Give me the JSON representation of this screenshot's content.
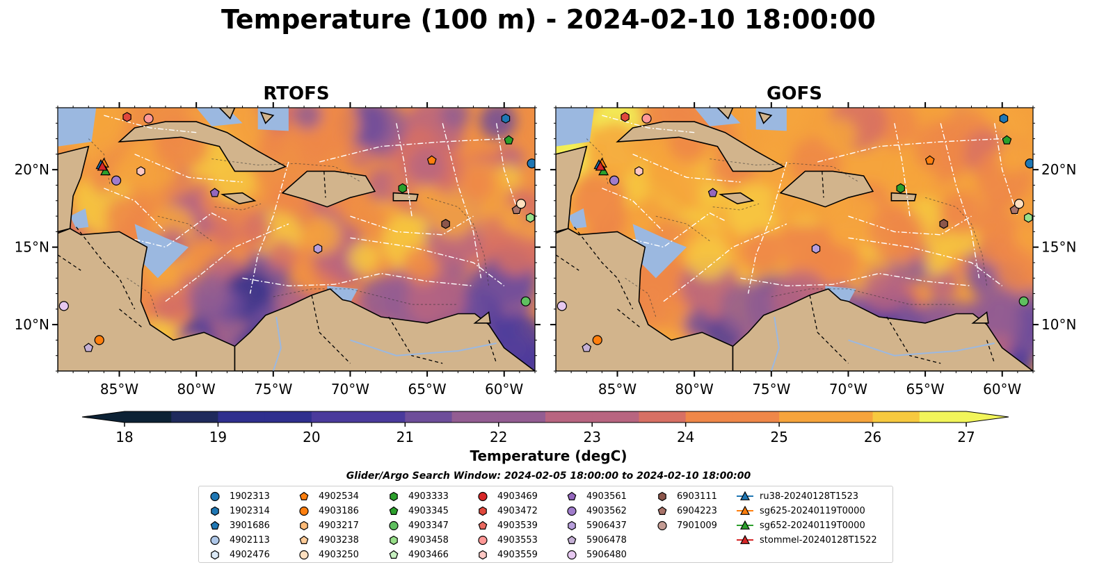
{
  "title": "Temperature (100 m) - 2024-02-10 18:00:00",
  "panels": [
    {
      "title": "RTOFS",
      "model": "RTOFS"
    },
    {
      "title": "GOFS",
      "model": "GOFS"
    }
  ],
  "colors": {
    "land": "#d2b48c",
    "shallow_water": "#9bb8e0",
    "coast": "#000000"
  },
  "colorbar": {
    "label": "Temperature (degC)",
    "ticks": [
      "18",
      "19",
      "20",
      "21",
      "22",
      "23",
      "24",
      "25",
      "26",
      "27"
    ],
    "min": 18,
    "max": 27,
    "extend": "both",
    "stops": [
      "#0d2235",
      "#1f2a5c",
      "#2f2f8e",
      "#4a3a9c",
      "#6e4e9a",
      "#935d92",
      "#b86580",
      "#d77064",
      "#ef8748",
      "#f6a43c",
      "#f7c93f",
      "#f2f55a"
    ]
  },
  "search_window": "Glider/Argo Search Window: 2024-02-05 18:00:00 to 2024-02-10 18:00:00",
  "chart_data": [
    {
      "type": "heatmap",
      "title": "RTOFS",
      "variable": "Temperature (degC)",
      "depth": "100 m",
      "x_ticks": [
        "85°W",
        "80°W",
        "75°W",
        "70°W",
        "65°W",
        "60°W"
      ],
      "y_ticks": [
        "10°N",
        "15°N",
        "20°N"
      ],
      "xlim": [
        -89,
        -58
      ],
      "ylim": [
        7,
        24
      ],
      "colorbar_range": [
        18,
        27
      ],
      "markers": [
        {
          "id": "1902313",
          "lon": -58.2,
          "lat": 20.4
        },
        {
          "id": "1902314",
          "lon": -59.9,
          "lat": 23.3
        },
        {
          "id": "4903345",
          "lon": -59.7,
          "lat": 21.9
        },
        {
          "id": "4902534",
          "lon": -64.7,
          "lat": 20.6
        },
        {
          "id": "4903333",
          "lon": -66.6,
          "lat": 18.8
        },
        {
          "id": "6904223",
          "lon": -59.2,
          "lat": 17.4
        },
        {
          "id": "4903250",
          "lon": -58.9,
          "lat": 17.8
        },
        {
          "id": "4903458",
          "lon": -58.3,
          "lat": 16.9
        },
        {
          "id": "6903111",
          "lon": -63.8,
          "lat": 16.5
        },
        {
          "id": "4903561",
          "lon": -78.8,
          "lat": 18.5
        },
        {
          "id": "4903562",
          "lon": -85.2,
          "lat": 19.3
        },
        {
          "id": "4903559",
          "lon": -83.6,
          "lat": 19.9
        },
        {
          "id": "5906437",
          "lon": -72.1,
          "lat": 14.9
        },
        {
          "id": "4903347",
          "lon": -58.6,
          "lat": 11.5
        },
        {
          "id": "5906480",
          "lon": -88.6,
          "lat": 11.2
        },
        {
          "id": "4903186",
          "lon": -86.3,
          "lat": 9.0
        },
        {
          "id": "5906478",
          "lon": -87.0,
          "lat": 8.5
        },
        {
          "id": "4903472",
          "lon": -84.5,
          "lat": 23.4
        },
        {
          "id": "4903553",
          "lon": -83.1,
          "lat": 23.3
        },
        {
          "id": "ru38-20240128T1523",
          "lon": -86.2,
          "lat": 20.3
        },
        {
          "id": "sg625-20240119T0000",
          "lon": -86.0,
          "lat": 20.4
        },
        {
          "id": "sg652-20240119T0000",
          "lon": -85.9,
          "lat": 19.9
        },
        {
          "id": "stommel-20240128T1522",
          "lon": -86.1,
          "lat": 20.2
        }
      ]
    },
    {
      "type": "heatmap",
      "title": "GOFS",
      "variable": "Temperature (degC)",
      "depth": "100 m",
      "x_ticks": [
        "85°W",
        "80°W",
        "75°W",
        "70°W",
        "65°W",
        "60°W"
      ],
      "y_ticks": [
        "10°N",
        "15°N",
        "20°N"
      ],
      "xlim": [
        -89,
        -58
      ],
      "ylim": [
        7,
        24
      ],
      "colorbar_range": [
        18,
        27
      ],
      "markers": "same as RTOFS"
    }
  ],
  "legend": [
    {
      "label": "1902313",
      "shape": "circle",
      "color": "#1f77b4"
    },
    {
      "label": "1902314",
      "shape": "hexagon",
      "color": "#1f77b4"
    },
    {
      "label": "3901686",
      "shape": "pentagon",
      "color": "#1f77b4"
    },
    {
      "label": "4902113",
      "shape": "circle",
      "color": "#aec7e8"
    },
    {
      "label": "4902476",
      "shape": "hexagon",
      "color": "#dbe9f6"
    },
    {
      "label": "4902534",
      "shape": "pentagon",
      "color": "#ff7f0e"
    },
    {
      "label": "4903186",
      "shape": "circle",
      "color": "#ff7f0e"
    },
    {
      "label": "4903217",
      "shape": "hexagon",
      "color": "#ffbb78"
    },
    {
      "label": "4903238",
      "shape": "pentagon",
      "color": "#ffcc99"
    },
    {
      "label": "4903250",
      "shape": "circle",
      "color": "#ffe0c0"
    },
    {
      "label": "4903333",
      "shape": "hexagon",
      "color": "#2ca02c"
    },
    {
      "label": "4903345",
      "shape": "pentagon",
      "color": "#2ca02c"
    },
    {
      "label": "4903347",
      "shape": "circle",
      "color": "#5fbf5f"
    },
    {
      "label": "4903458",
      "shape": "hexagon",
      "color": "#98df8a"
    },
    {
      "label": "4903466",
      "shape": "pentagon",
      "color": "#c7f0c0"
    },
    {
      "label": "4903469",
      "shape": "circle",
      "color": "#d62728"
    },
    {
      "label": "4903472",
      "shape": "hexagon",
      "color": "#e0483c"
    },
    {
      "label": "4903539",
      "shape": "pentagon",
      "color": "#ea6a60"
    },
    {
      "label": "4903553",
      "shape": "circle",
      "color": "#ff9896"
    },
    {
      "label": "4903559",
      "shape": "hexagon",
      "color": "#ffc8c4"
    },
    {
      "label": "4903561",
      "shape": "pentagon",
      "color": "#9467bd"
    },
    {
      "label": "4903562",
      "shape": "circle",
      "color": "#a07ccb"
    },
    {
      "label": "5906437",
      "shape": "hexagon",
      "color": "#b79edb"
    },
    {
      "label": "5906478",
      "shape": "pentagon",
      "color": "#c5b0d5"
    },
    {
      "label": "5906480",
      "shape": "circle",
      "color": "#e6c8f0"
    },
    {
      "label": "6903111",
      "shape": "hexagon",
      "color": "#8c564b"
    },
    {
      "label": "6904223",
      "shape": "pentagon",
      "color": "#a9746a"
    },
    {
      "label": "7901009",
      "shape": "circle",
      "color": "#c49c94"
    },
    {
      "label": "ru38-20240128T1523",
      "shape": "triangle",
      "color": "#1f77b4"
    },
    {
      "label": "sg625-20240119T0000",
      "shape": "triangle",
      "color": "#ff7f0e"
    },
    {
      "label": "sg652-20240119T0000",
      "shape": "triangle",
      "color": "#2ca02c"
    },
    {
      "label": "stommel-20240128T1522",
      "shape": "triangle",
      "color": "#d62728"
    }
  ]
}
